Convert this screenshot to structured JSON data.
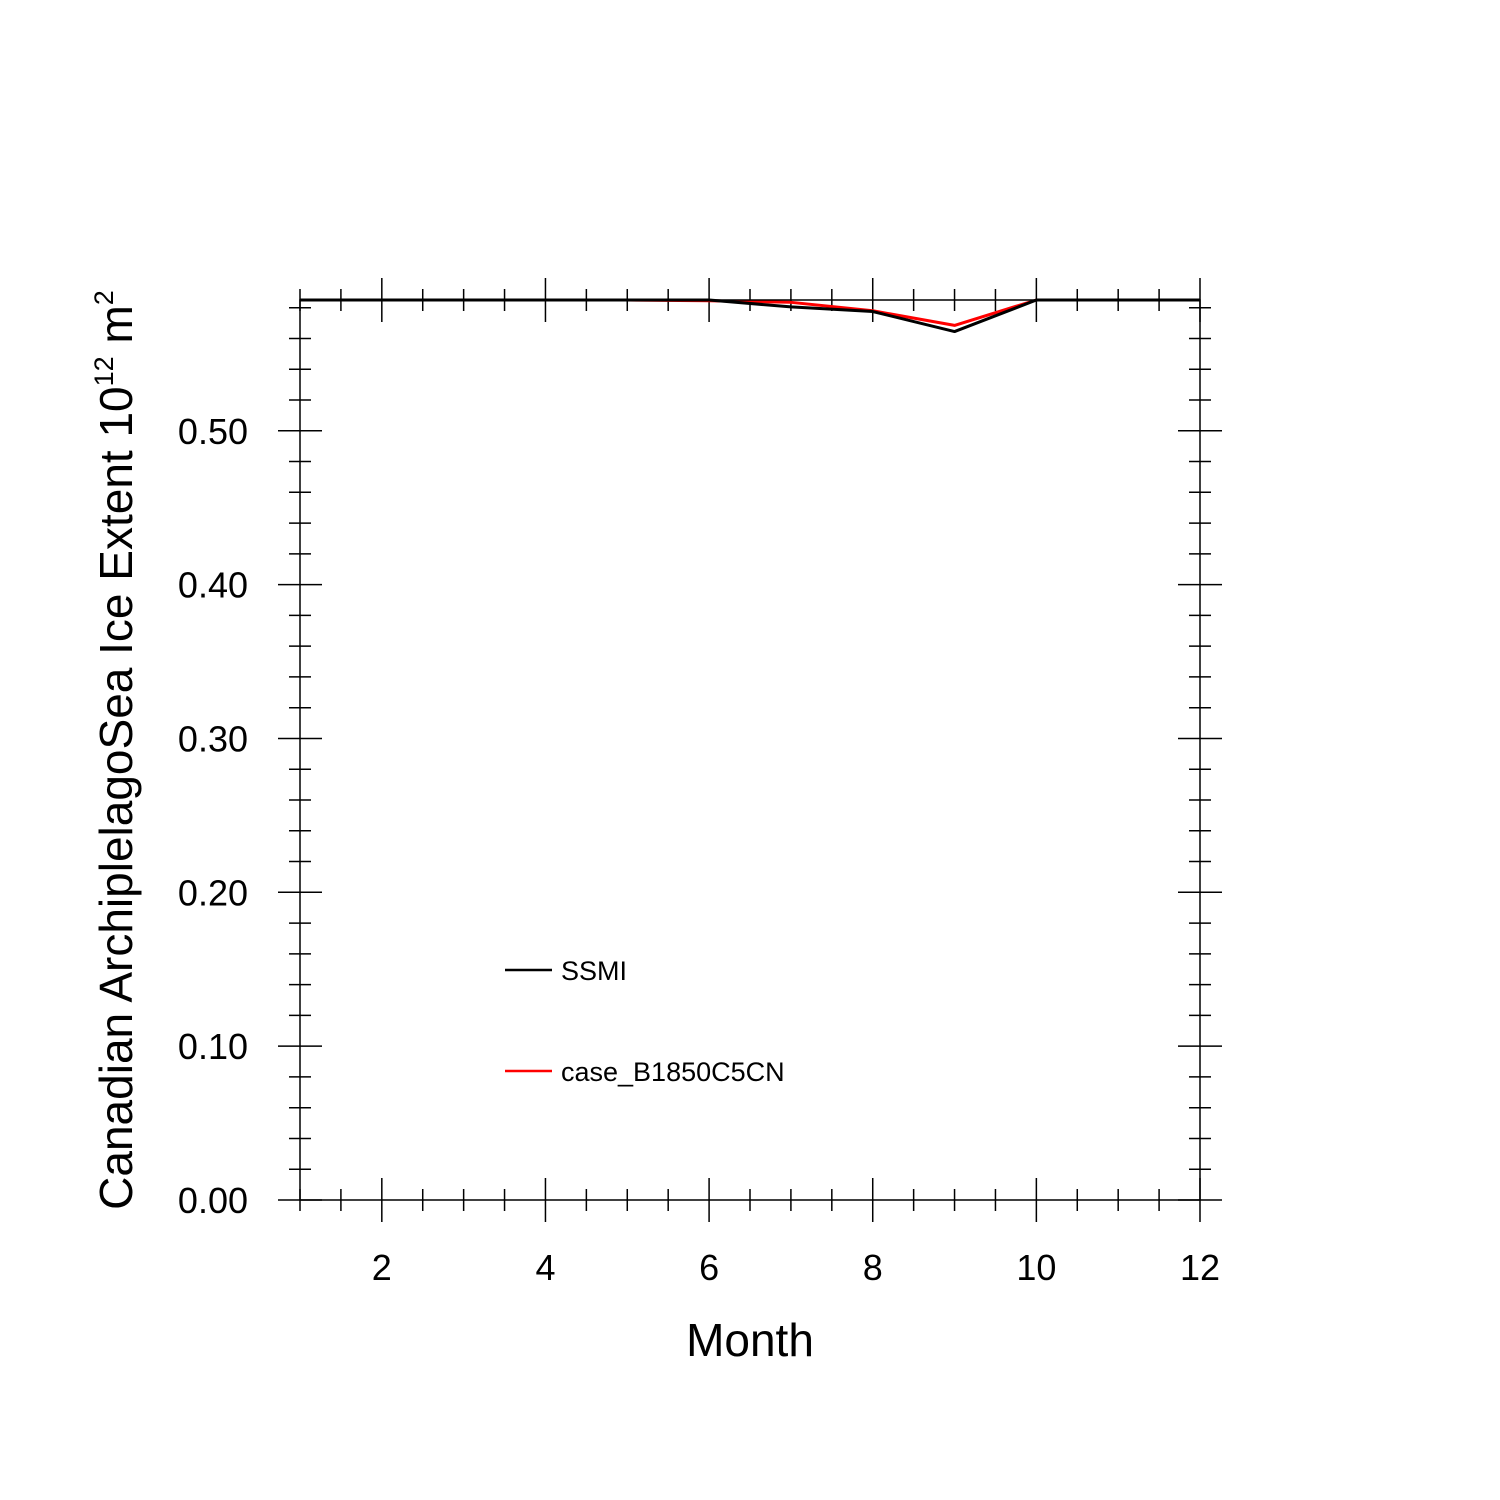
{
  "chart_data": {
    "type": "line",
    "xlabel": "Month",
    "ylabel": {
      "main": "Canadian ArchiplelagoSea Ice Extent 10",
      "sup1": "12",
      "unit": " m",
      "sup2": "2"
    },
    "xlim": [
      1,
      12
    ],
    "ylim": [
      0,
      0.585
    ],
    "xticks": [
      2,
      4,
      6,
      8,
      10,
      12
    ],
    "xtick_labels": [
      "2",
      "4",
      "6",
      "8",
      "10",
      "12"
    ],
    "yticks": [
      0,
      0.1,
      0.2,
      0.3,
      0.4,
      0.5
    ],
    "ytick_labels": [
      "0.00",
      "0.10",
      "0.20",
      "0.30",
      "0.40",
      "0.50"
    ],
    "x": [
      1,
      2,
      3,
      4,
      5,
      6,
      7,
      8,
      9,
      10,
      11,
      12
    ],
    "series": [
      {
        "name": "SSMI",
        "color": "#000000",
        "values": [
          0.585,
          0.585,
          0.585,
          0.585,
          0.585,
          0.585,
          0.5805,
          0.5775,
          0.5645,
          0.585,
          0.585,
          0.585
        ]
      },
      {
        "name": "case_B1850C5CN",
        "color": "#ff0000",
        "values": [
          0.585,
          0.585,
          0.585,
          0.585,
          0.585,
          0.5845,
          0.5835,
          0.578,
          0.5685,
          0.585,
          0.585,
          0.585
        ]
      }
    ],
    "legend_position": "lower-left-inside",
    "grid": false
  }
}
